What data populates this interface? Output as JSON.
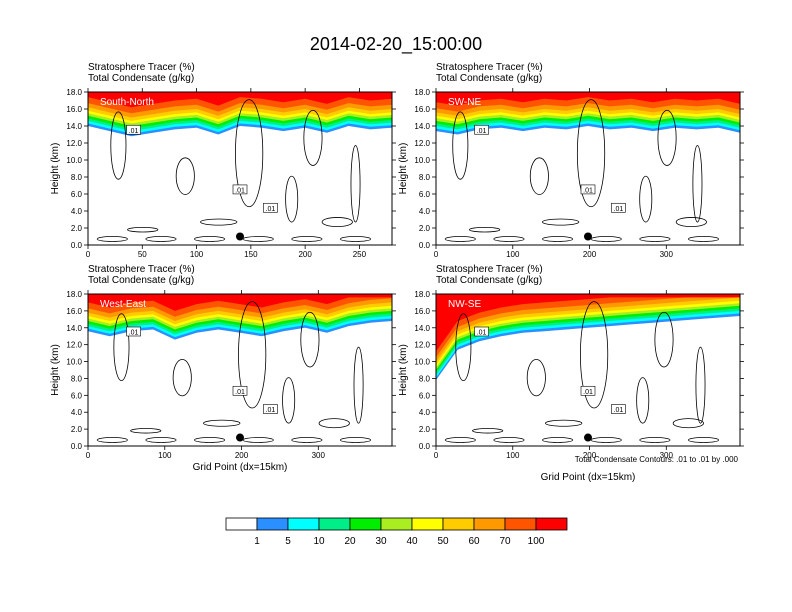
{
  "chart_data": {
    "type": "heatmap",
    "title": "2014-02-20_15:00:00",
    "subtitle_lines": [
      "Stratosphere Tracer   (%)",
      "Total Condensate   (g/kg)"
    ],
    "ylabel": "Height (km)",
    "xlabel": "Grid Point (dx=15km)",
    "ylim": [
      0,
      18
    ],
    "y_ticks": [
      "0.0",
      "2.0",
      "4.0",
      "6.0",
      "8.0",
      "10.0",
      "12.0",
      "14.0",
      "16.0",
      "18.0"
    ],
    "contour_note": "Total Condensate Contours: .01 to .01 by .000",
    "contour_label": ".01",
    "panels": [
      {
        "name": "South-North",
        "xlim": [
          0,
          280
        ],
        "x_ticks": [
          0,
          50,
          100,
          150,
          200,
          250
        ],
        "tropopause_km": [
          15.2,
          14.6,
          14.0,
          14.4,
          14.8,
          15.0,
          14.2,
          15.2,
          15.0,
          14.6,
          15.0,
          14.4,
          15.2,
          14.8,
          15.0
        ],
        "marker_x": 140,
        "marker_km": 1.0
      },
      {
        "name": "SW-NE",
        "xlim": [
          0,
          396
        ],
        "x_ticks": [
          0,
          100,
          200,
          300
        ],
        "tropopause_km": [
          14.6,
          14.2,
          14.8,
          15.0,
          14.6,
          15.0,
          14.8,
          15.2,
          14.8,
          15.0,
          14.6,
          15.0,
          14.8,
          15.0,
          14.4
        ],
        "marker_x": 198,
        "marker_km": 1.0
      },
      {
        "name": "West-East",
        "xlim": [
          0,
          396
        ],
        "x_ticks": [
          0,
          100,
          200,
          300
        ],
        "tropopause_km": [
          14.8,
          14.2,
          14.8,
          15.0,
          13.8,
          14.6,
          15.0,
          14.6,
          14.2,
          14.8,
          15.2,
          14.6,
          15.4,
          15.8,
          16.0
        ],
        "marker_x": 198,
        "marker_km": 1.0
      },
      {
        "name": "NW-SE",
        "xlim": [
          0,
          396
        ],
        "x_ticks": [
          0,
          100,
          200,
          300
        ],
        "tropopause_km": [
          9.0,
          12.6,
          13.6,
          14.2,
          14.6,
          14.8,
          15.0,
          15.2,
          15.4,
          15.6,
          15.8,
          16.0,
          16.2,
          16.4,
          16.6
        ],
        "marker_x": 198,
        "marker_km": 1.0
      }
    ],
    "colorbar": {
      "levels": [
        "1",
        "5",
        "10",
        "20",
        "30",
        "40",
        "50",
        "60",
        "70",
        "100"
      ],
      "colors": [
        "#ffffff",
        "#2b90ff",
        "#00ffff",
        "#00ee88",
        "#00ee00",
        "#aaee22",
        "#ffff00",
        "#ffcc00",
        "#ff9900",
        "#ff5500",
        "#ff0000"
      ]
    }
  }
}
